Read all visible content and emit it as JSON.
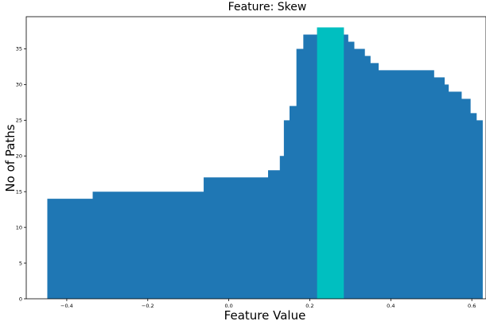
{
  "chart_data": {
    "type": "area",
    "title": "Feature: Skew",
    "xlabel": "Feature Value",
    "ylabel": "No of Paths",
    "xlim": [
      -0.5,
      0.635
    ],
    "ylim": [
      0,
      39.5
    ],
    "xticks": [
      -0.4,
      -0.2,
      0.0,
      0.2,
      0.4,
      0.6
    ],
    "xtick_labels": [
      "−0.4",
      "−0.2",
      "0.0",
      "0.2",
      "0.4",
      "0.6"
    ],
    "yticks": [
      0,
      5,
      10,
      15,
      20,
      25,
      30,
      35
    ],
    "ytick_labels": [
      "0",
      "5",
      "10",
      "15",
      "20",
      "25",
      "30",
      "35"
    ],
    "grid": false,
    "colors": {
      "series": "#1f77b4",
      "highlight": "#00bfc0"
    },
    "series": [
      {
        "x": [
          -0.448,
          -0.336,
          -0.062,
          0.097,
          0.126,
          0.136,
          0.15,
          0.167,
          0.184,
          0.218,
          0.284,
          0.295,
          0.31,
          0.336,
          0.35,
          0.37,
          0.44,
          0.507,
          0.533,
          0.543,
          0.575,
          0.597,
          0.612,
          0.627
        ],
        "y": [
          14,
          15,
          17,
          18,
          20,
          25,
          27,
          35,
          37,
          38,
          37,
          36,
          35,
          34,
          33,
          32,
          32,
          31,
          30,
          29,
          28,
          26,
          25,
          25
        ]
      }
    ],
    "highlight": {
      "x_start": 0.218,
      "x_end": 0.284,
      "value": 38
    }
  }
}
